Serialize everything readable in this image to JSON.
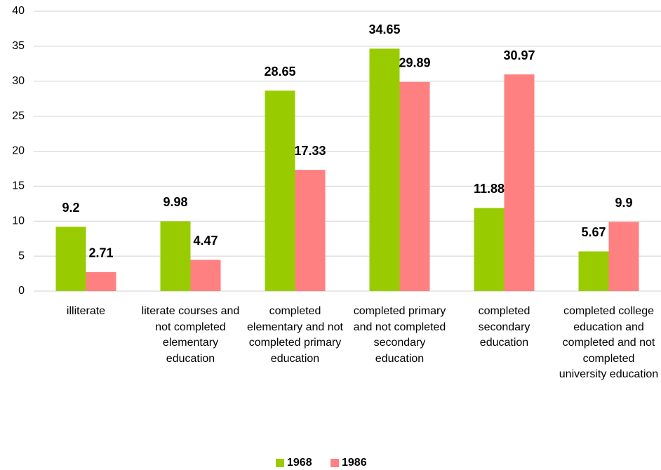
{
  "chart_data": {
    "type": "bar",
    "categories": [
      "illiterate",
      "literate courses and not completed elementary education",
      "completed elementary and not completed primary education",
      "completed primary and not completed secondary education",
      "completed secondary education",
      "completed college education and completed and not completed university education"
    ],
    "series": [
      {
        "name": "1968",
        "color": "#99cc00",
        "values": [
          9.2,
          9.98,
          28.65,
          34.65,
          11.88,
          5.67
        ]
      },
      {
        "name": "1986",
        "color": "#ff8080",
        "values": [
          2.71,
          4.47,
          17.33,
          29.89,
          30.97,
          9.9
        ]
      }
    ],
    "ylim": [
      0,
      40
    ],
    "yticks": [
      0,
      5,
      10,
      15,
      20,
      25,
      30,
      35,
      40
    ],
    "grid": true,
    "legend": "bottom"
  }
}
